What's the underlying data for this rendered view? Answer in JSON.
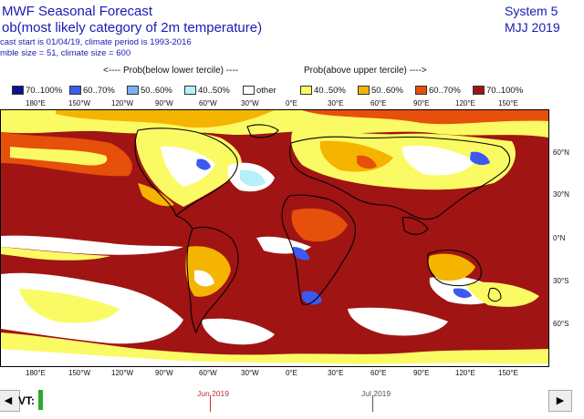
{
  "header": {
    "title_line1": "MWF Seasonal Forecast",
    "title_line2": "ob(most likely category of 2m temperature)",
    "title_line3": "cast start is 01/04/19, climate period is 1993-2016",
    "title_line4": "mble size = 51, climate size = 600",
    "system": "System 5",
    "season": "MJJ 2019"
  },
  "legend": {
    "below_label": "<---- Prob(below lower tercile) ----",
    "above_label": "Prob(above upper tercile) ---->",
    "items": [
      {
        "label": "70..100%",
        "color": "#0a148c"
      },
      {
        "label": "60..70%",
        "color": "#3c5af0"
      },
      {
        "label": "50..60%",
        "color": "#78b4f0"
      },
      {
        "label": "40..50%",
        "color": "#b4f0fa"
      },
      {
        "label": "other",
        "color": "#ffffff"
      },
      {
        "label": "40..50%",
        "color": "#fafa64"
      },
      {
        "label": "50..60%",
        "color": "#f5b400"
      },
      {
        "label": "60..70%",
        "color": "#e6500a"
      },
      {
        "label": "70..100%",
        "color": "#a01414"
      }
    ]
  },
  "map": {
    "lon_labels": [
      "180°E",
      "150°W",
      "120°W",
      "90°W",
      "60°W",
      "30°W",
      "0°E",
      "30°E",
      "60°E",
      "90°E",
      "120°E",
      "150°E"
    ],
    "lat_labels": [
      "60°N",
      "30°N",
      "0°N",
      "30°S",
      "60°S"
    ]
  },
  "timebar": {
    "vt_label": "VT:",
    "prev_icon": "◀",
    "next_icon": "▶",
    "month1": "Jun 2019",
    "month2": "Jul 2019"
  }
}
